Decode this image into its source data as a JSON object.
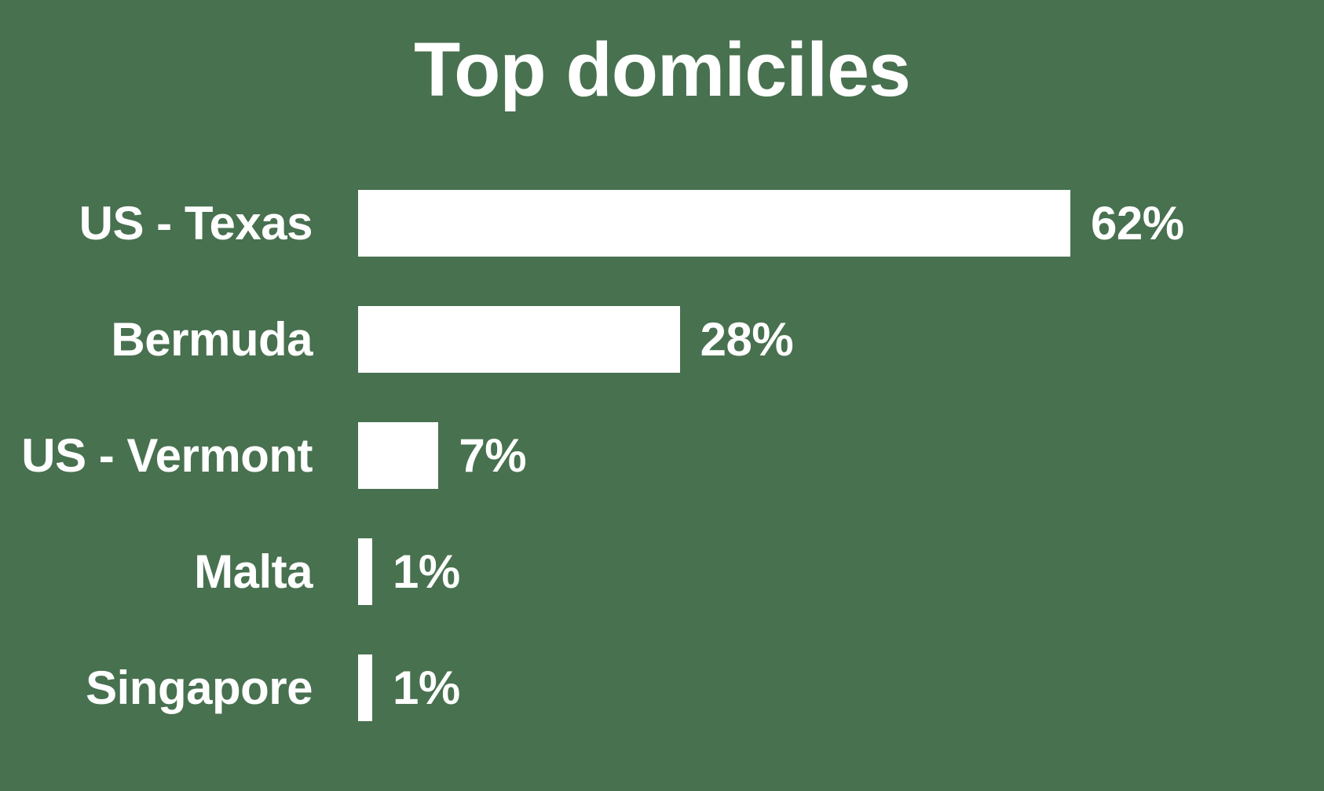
{
  "title": "Top domiciles",
  "colors": {
    "background": "#48714F",
    "bar": "#FFFFFF",
    "text": "#FFFFFF"
  },
  "chart_data": {
    "type": "bar",
    "orientation": "horizontal",
    "title": "Top domiciles",
    "xlabel": "",
    "ylabel": "",
    "categories": [
      "US - Texas",
      "Bermuda",
      "US - Vermont",
      "Malta",
      "Singapore"
    ],
    "values": [
      62,
      28,
      7,
      1,
      1
    ],
    "value_labels": [
      "62%",
      "28%",
      "7%",
      "1%",
      "1%"
    ],
    "unit": "%",
    "xlim": [
      0,
      62
    ],
    "grid": false,
    "legend": false,
    "axes_shown": false,
    "value_label_position": "right-of-bar",
    "category_label_position": "left-of-bar"
  }
}
